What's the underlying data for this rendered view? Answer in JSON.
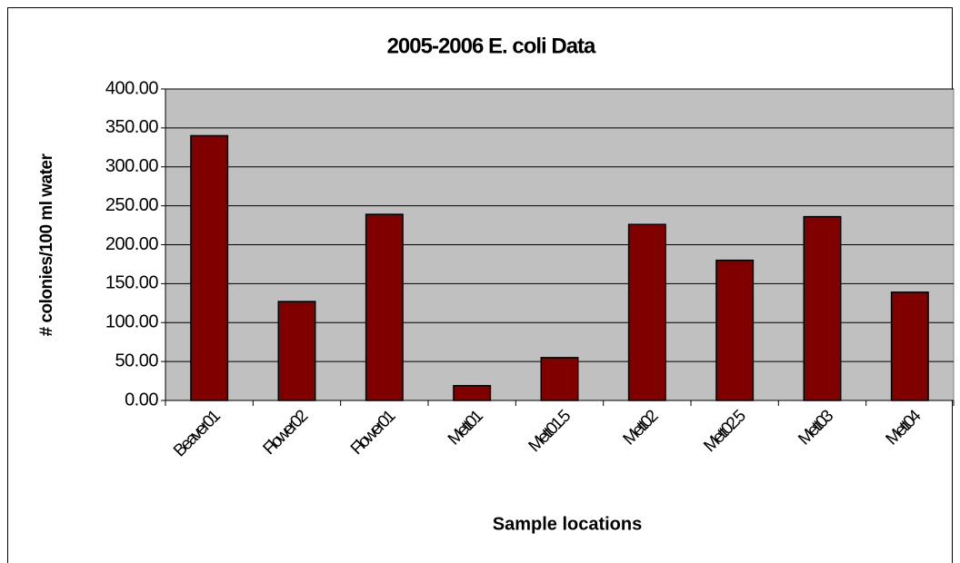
{
  "chart_data": {
    "type": "bar",
    "title": "2005-2006 E. coli Data",
    "y_label": "# colonies/100 ml water",
    "x_label": "Sample locations",
    "categories": [
      "Beaver01",
      "Flower02",
      "Flower01",
      "Mett01",
      "Mett01.5",
      "Mett02",
      "Mett02.5",
      "Mett03",
      "Mett04"
    ],
    "values": [
      340,
      127,
      239,
      19,
      55,
      226,
      180,
      236,
      139
    ],
    "color": "#800000",
    "plot_background": "#c0c0c0",
    "ylim": [
      0,
      400
    ],
    "yticks": [
      {
        "value": 0,
        "label": "0.00"
      },
      {
        "value": 50,
        "label": "50.00"
      },
      {
        "value": 100,
        "label": "100.00"
      },
      {
        "value": 150,
        "label": "150.00"
      },
      {
        "value": 200,
        "label": "200.00"
      },
      {
        "value": 250,
        "label": "250.00"
      },
      {
        "value": 300,
        "label": "300.00"
      },
      {
        "value": 350,
        "label": "350.00"
      },
      {
        "value": 400,
        "label": "400.00"
      }
    ],
    "grid": true
  }
}
